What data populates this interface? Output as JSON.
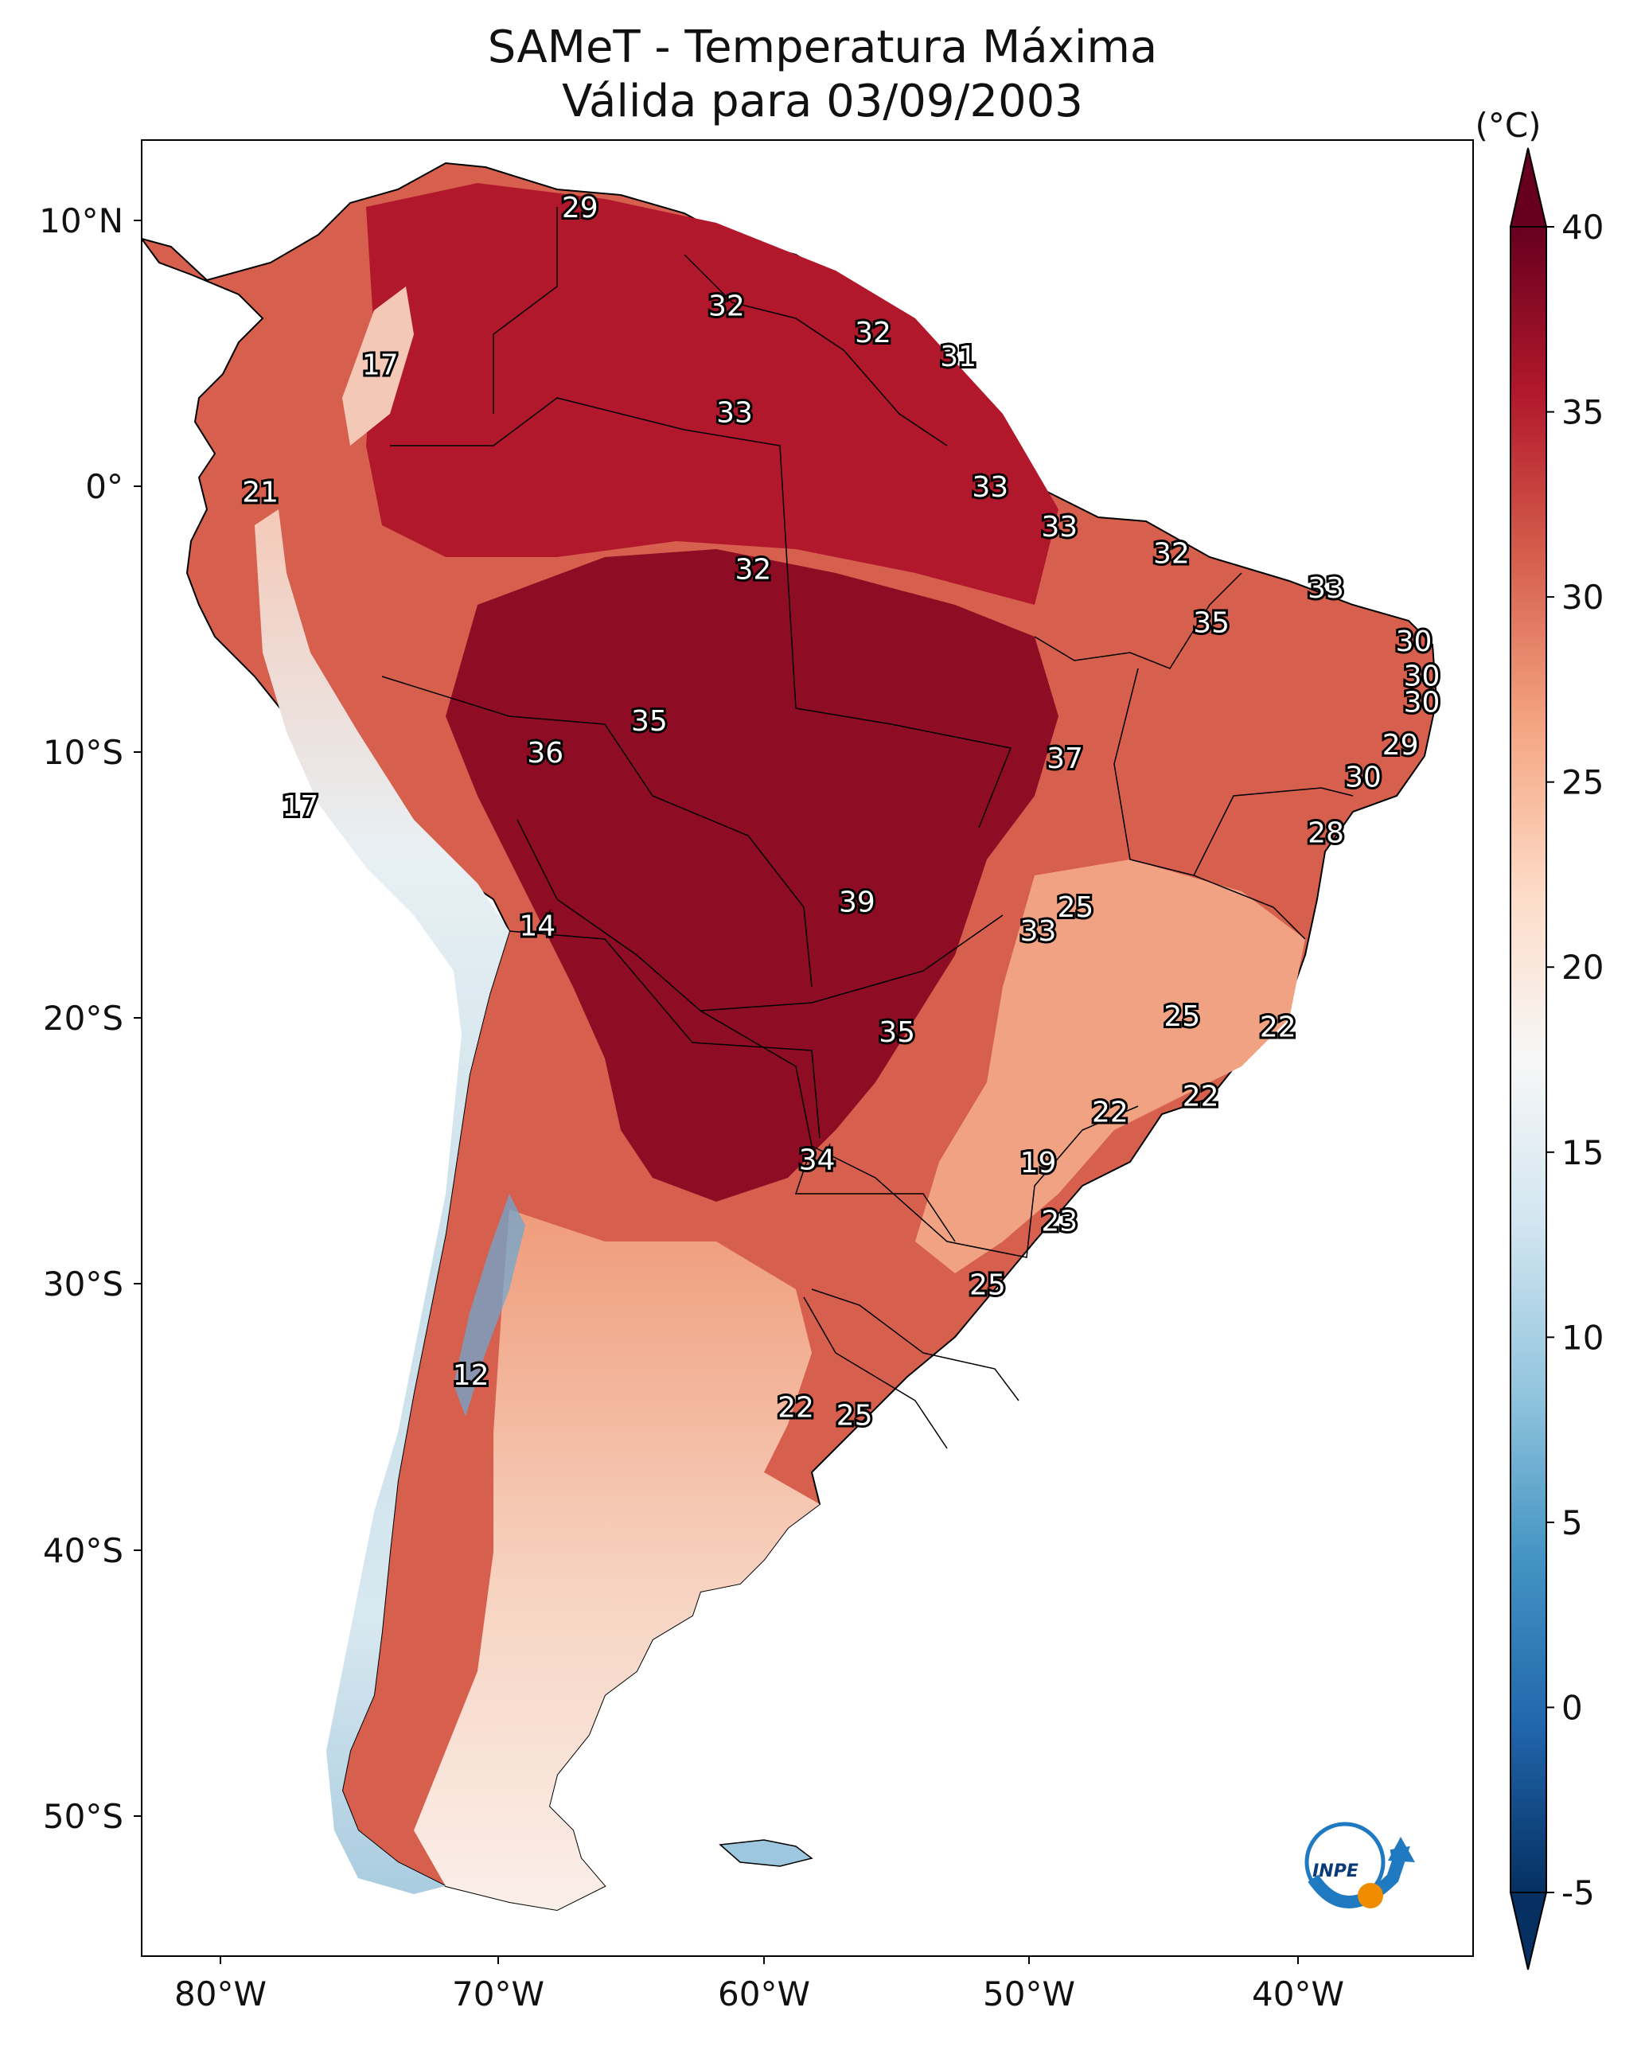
{
  "title": {
    "line1": "SAMeT - Temperatura Máxima",
    "line2": "Válida para 03/09/2003"
  },
  "colorbar": {
    "unit": "(°C)",
    "min": -5,
    "max": 40,
    "ticks": [
      "-5",
      "0",
      "5",
      "10",
      "15",
      "20",
      "25",
      "30",
      "35",
      "40"
    ],
    "colors": [
      "#053061",
      "#2166ac",
      "#4393c3",
      "#92c5de",
      "#d1e5f0",
      "#f7f7f7",
      "#fddbc7",
      "#f4a582",
      "#d6604d",
      "#b2182b",
      "#67001f"
    ]
  },
  "axes": {
    "lon_labels": [
      "80°W",
      "70°W",
      "60°W",
      "50°W",
      "40°W"
    ],
    "lat_labels": [
      "10°N",
      "0°",
      "10°S",
      "20°S",
      "30°S",
      "40°S",
      "50°S"
    ]
  },
  "logo": {
    "text": "INPE"
  },
  "stations": [
    {
      "value": "29",
      "lon": -66.5,
      "lat": 10.5
    },
    {
      "value": "17",
      "lon": -74.0,
      "lat": 4.6
    },
    {
      "value": "32",
      "lon": -61.0,
      "lat": 6.8
    },
    {
      "value": "32",
      "lon": -55.5,
      "lat": 5.8
    },
    {
      "value": "31",
      "lon": -52.3,
      "lat": 4.9
    },
    {
      "value": "33",
      "lon": -60.7,
      "lat": 2.8
    },
    {
      "value": "21",
      "lon": -78.5,
      "lat": -0.2
    },
    {
      "value": "33",
      "lon": -51.1,
      "lat": 0.0
    },
    {
      "value": "33",
      "lon": -48.5,
      "lat": -1.5
    },
    {
      "value": "32",
      "lon": -44.3,
      "lat": -2.5
    },
    {
      "value": "32",
      "lon": -60.0,
      "lat": -3.1
    },
    {
      "value": "33",
      "lon": -38.5,
      "lat": -3.8
    },
    {
      "value": "35",
      "lon": -42.8,
      "lat": -5.1
    },
    {
      "value": "30",
      "lon": -35.2,
      "lat": -5.8
    },
    {
      "value": "30",
      "lon": -34.9,
      "lat": -7.1
    },
    {
      "value": "30",
      "lon": -34.9,
      "lat": -8.1
    },
    {
      "value": "35",
      "lon": -63.9,
      "lat": -8.8
    },
    {
      "value": "36",
      "lon": -67.8,
      "lat": -10.0
    },
    {
      "value": "37",
      "lon": -48.3,
      "lat": -10.2
    },
    {
      "value": "29",
      "lon": -35.7,
      "lat": -9.7
    },
    {
      "value": "30",
      "lon": -37.1,
      "lat": -10.9
    },
    {
      "value": "17",
      "lon": -77.0,
      "lat": -12.0
    },
    {
      "value": "28",
      "lon": -38.5,
      "lat": -13.0
    },
    {
      "value": "25",
      "lon": -47.9,
      "lat": -15.8
    },
    {
      "value": "39",
      "lon": -56.1,
      "lat": -15.6
    },
    {
      "value": "33",
      "lon": -49.3,
      "lat": -16.7
    },
    {
      "value": "14",
      "lon": -68.1,
      "lat": -16.5
    },
    {
      "value": "25",
      "lon": -43.9,
      "lat": -19.9
    },
    {
      "value": "22",
      "lon": -40.3,
      "lat": -20.3
    },
    {
      "value": "35",
      "lon": -54.6,
      "lat": -20.5
    },
    {
      "value": "22",
      "lon": -43.2,
      "lat": -22.9
    },
    {
      "value": "22",
      "lon": -46.6,
      "lat": -23.5
    },
    {
      "value": "34",
      "lon": -57.6,
      "lat": -25.3
    },
    {
      "value": "19",
      "lon": -49.3,
      "lat": -25.4
    },
    {
      "value": "23",
      "lon": -48.5,
      "lat": -27.6
    },
    {
      "value": "25",
      "lon": -51.2,
      "lat": -30.0
    },
    {
      "value": "12",
      "lon": -70.6,
      "lat": -33.4
    },
    {
      "value": "22",
      "lon": -58.4,
      "lat": -34.6
    },
    {
      "value": "25",
      "lon": -56.2,
      "lat": -34.9
    }
  ]
}
